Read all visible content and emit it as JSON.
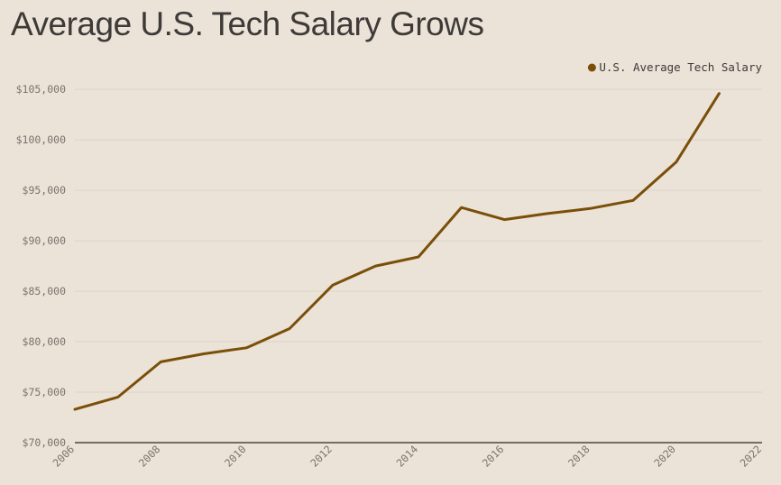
{
  "chart_data": {
    "type": "line",
    "title": "Average U.S. Tech Salary Grows",
    "xlabel": "",
    "ylabel": "",
    "xlim": [
      2006,
      2022
    ],
    "ylim": [
      70000,
      106000
    ],
    "x_ticks": [
      2006,
      2008,
      2010,
      2012,
      2014,
      2016,
      2018,
      2020,
      2022
    ],
    "y_ticks": [
      70000,
      75000,
      80000,
      85000,
      90000,
      95000,
      100000,
      105000
    ],
    "y_tick_labels": [
      "$70,000",
      "$75,000",
      "$80,000",
      "$85,000",
      "$90,000",
      "$95,000",
      "$100,000",
      "$105,000"
    ],
    "grid": true,
    "legend_position": "top-right",
    "series": [
      {
        "name": "U.S. Average Tech Salary",
        "color": "#7a4f08",
        "x": [
          2006,
          2007,
          2008,
          2009,
          2010,
          2011,
          2012,
          2013,
          2014,
          2015,
          2016,
          2017,
          2018,
          2019,
          2020,
          2021
        ],
        "values": [
          73300,
          74500,
          78000,
          78800,
          79400,
          81300,
          85600,
          87500,
          88400,
          93300,
          92100,
          92700,
          93200,
          94000,
          97800,
          104600
        ]
      }
    ]
  },
  "colors": {
    "background": "#ebe2d8",
    "grid": "#dcd4c9",
    "axis": "#4a4641",
    "line": "#7a4f08"
  }
}
